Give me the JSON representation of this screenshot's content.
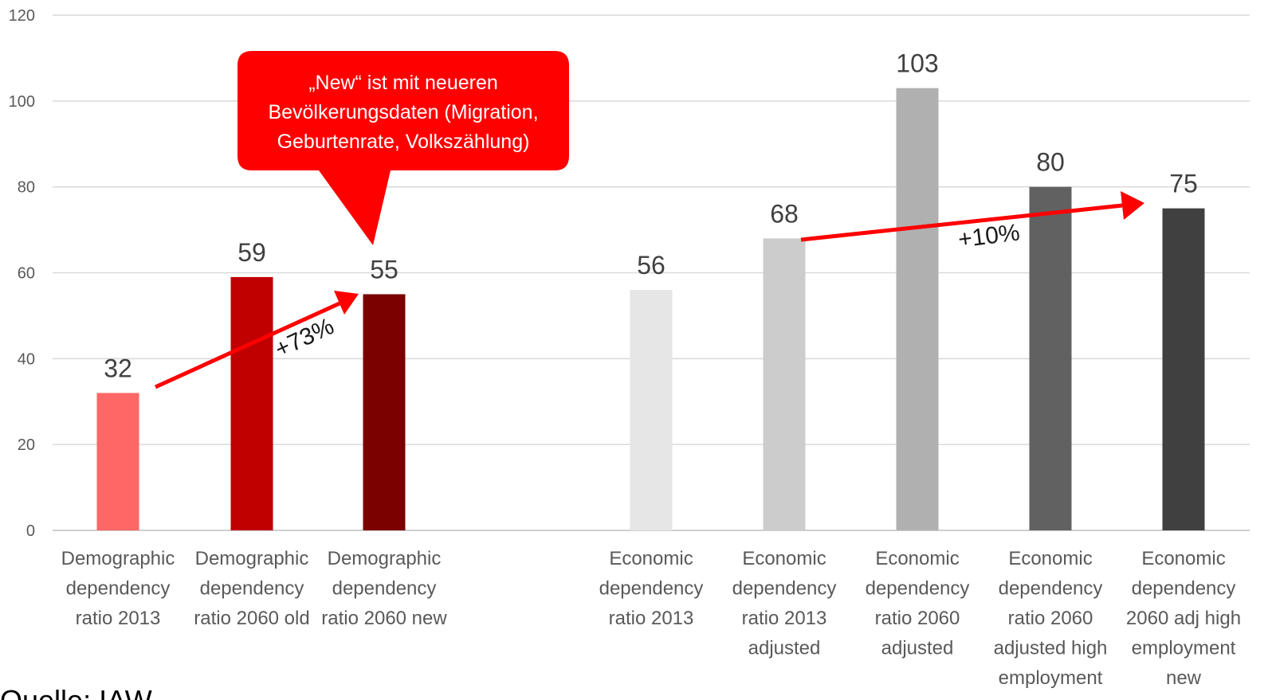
{
  "chart_data": {
    "type": "bar",
    "ylim": [
      0,
      120
    ],
    "yticks": [
      0,
      20,
      40,
      60,
      80,
      100,
      120
    ],
    "grid": true,
    "categories": [
      [
        "Demographic",
        "dependency",
        "ratio 2013"
      ],
      [
        "Demographic",
        "dependency",
        "ratio 2060 old"
      ],
      [
        "Demographic",
        "dependency",
        "ratio 2060 new"
      ],
      [
        "Economic",
        "dependency",
        "ratio 2013"
      ],
      [
        "Economic",
        "dependency",
        "ratio 2013",
        "adjusted"
      ],
      [
        "Economic",
        "dependency",
        "ratio 2060",
        "adjusted"
      ],
      [
        "Economic",
        "dependency",
        "ratio 2060",
        "adjusted high",
        "employment"
      ],
      [
        "Economic",
        "dependency",
        "2060 adj high",
        "employment",
        "new"
      ]
    ],
    "values": [
      32,
      59,
      55,
      56,
      68,
      103,
      80,
      75
    ],
    "colors": [
      "#ff6666",
      "#c00000",
      "#7b0000",
      "#e6e6e6",
      "#cccccc",
      "#b0b0b0",
      "#616161",
      "#404040"
    ],
    "annotations": {
      "callout": [
        "„New“ ist mit neueren",
        "Bevölkerungsdaten (Migration,",
        "Geburtenrate, Volkszählung)"
      ],
      "arrow1_label": "+73%",
      "arrow2_label": "+10%"
    }
  },
  "footer": {
    "source_partial": "Quelle: IAW"
  },
  "colors": {
    "arrow": "#ff0000",
    "callout": "#ff0000",
    "grid": "#d9d9d9"
  }
}
